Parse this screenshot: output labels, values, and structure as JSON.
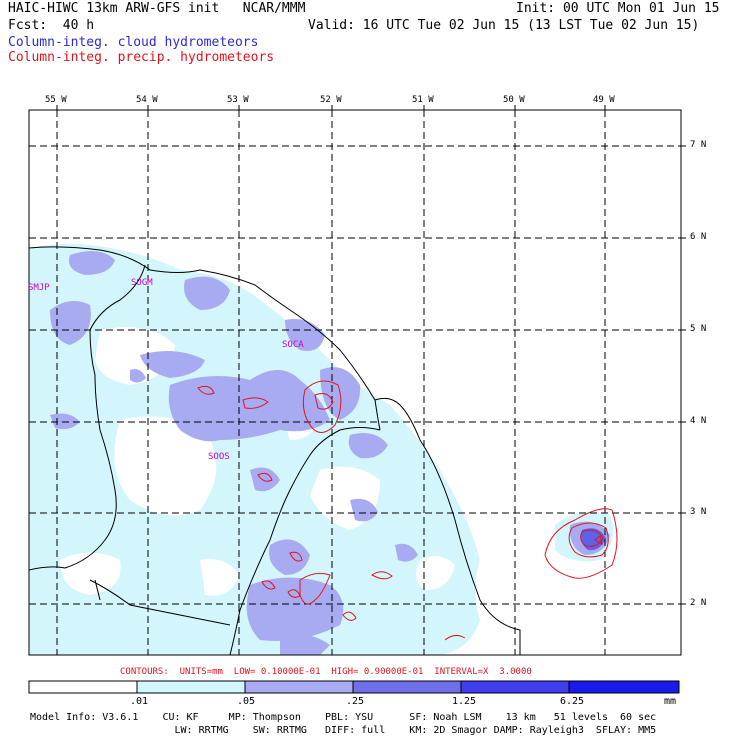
{
  "header": {
    "line1_left": "HAIC-HIWC 13km ARW-GFS init   NCAR/MMM",
    "line1_right": "Init: 00 UTC Mon 01 Jun 15",
    "line2_left": "Fcst:  40 h",
    "line2_right": "Valid: 16 UTC Tue 02 Jun 15 (13 LST Tue 02 Jun 15)",
    "legend_cloud": "Column-integ. cloud hydrometeors",
    "legend_precip": "Column-integ. precip. hydrometeors"
  },
  "map": {
    "lon_labels": [
      "55 W",
      "54 W",
      "53 W",
      "52 W",
      "51 W",
      "50 W",
      "49 W"
    ],
    "lat_labels": [
      "7 N",
      "6 N",
      "5 N",
      "4 N",
      "3 N",
      "2 N"
    ],
    "stations": [
      "SMJP",
      "SOGM",
      "SOCA",
      "SOOS"
    ],
    "colors": {
      "light": "#d2f6fb",
      "mid": "#a9abf2",
      "strong": "#5f61e6",
      "vstrong": "#2e2ef2",
      "contour": "#e0141e",
      "station": "#cc00cc"
    }
  },
  "contour_info": "CONTOURS:  UNITS=mm  LOW= 0.10000E-01  HIGH= 0.90000E-01  INTERVAL=X  3.0000",
  "colorbar": {
    "labels": [
      ".01",
      ".05",
      ".25",
      "1.25",
      "6.25"
    ],
    "unit": "mm",
    "colors": [
      "#ffffff",
      "#d2f6fb",
      "#a9abf2",
      "#6e70ea",
      "#3f3ff0",
      "#1a1aee"
    ]
  },
  "model_info": {
    "line1": "Model Info: V3.6.1    CU: KF     MP: Thompson    PBL: YSU      SF: Noah LSM    13 km   51 levels  60 sec",
    "line2": "                        LW: RRTMG    SW: RRTMG   DIFF: full    KM: 2D Smagor DAMP: Rayleigh3  SFLAY: MM5"
  }
}
